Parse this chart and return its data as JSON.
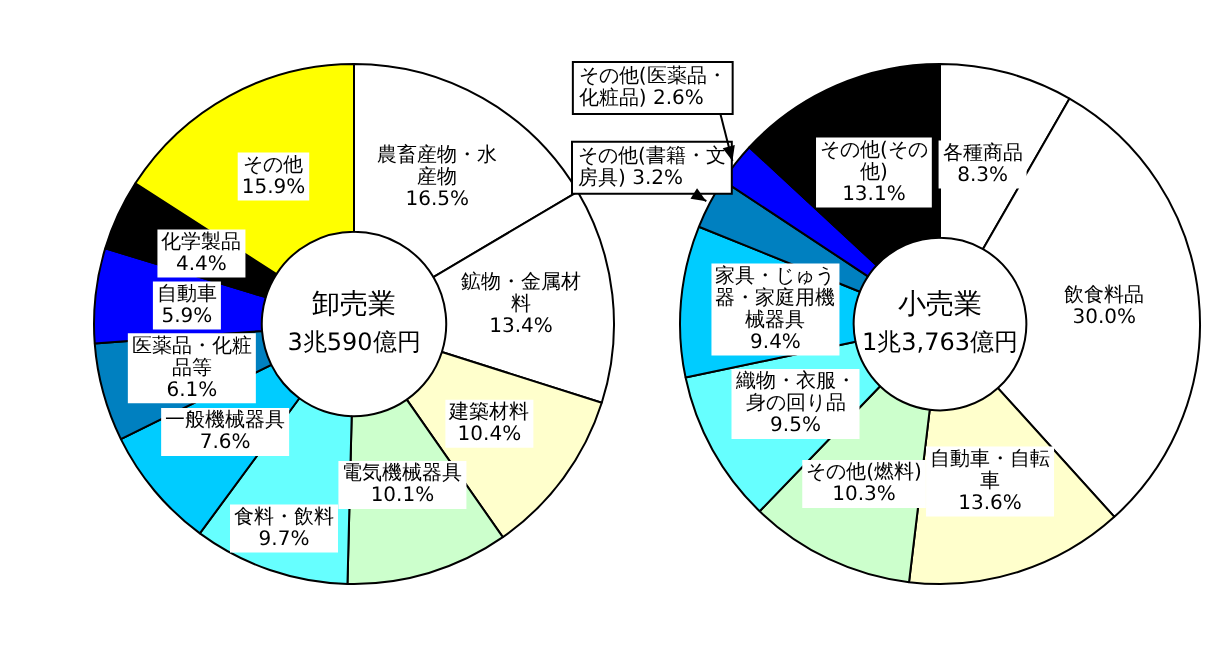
{
  "chart_data": [
    {
      "type": "donut",
      "title": "卸売業",
      "subtitle": "3兆590億円",
      "categories": [
        "農畜産物・水産物",
        "鉱物・金属材料",
        "建築材料",
        "電気機械器具",
        "食料・飲料",
        "一般機械器具",
        "医薬品・化粧品等",
        "自動車",
        "化学製品",
        "その他"
      ],
      "values": [
        16.5,
        13.4,
        10.4,
        10.1,
        9.7,
        7.6,
        6.1,
        5.9,
        4.4,
        15.9
      ],
      "value_labels": [
        "16.5%",
        "13.4%",
        "10.4%",
        "10.1%",
        "9.7%",
        "7.6%",
        "6.1%",
        "5.9%",
        "4.4%",
        "15.9%"
      ],
      "colors": [
        "#ffffff",
        "#ffffff",
        "#ffffcc",
        "#ccffcc",
        "#66ffff",
        "#00ccff",
        "#0080c0",
        "#0000ff",
        "#000000",
        "#ffff00"
      ],
      "legend": false
    },
    {
      "type": "donut",
      "title": "小売業",
      "subtitle": "1兆3,763億円",
      "categories": [
        "各種商品",
        "飲食料品",
        "自動車・自転車",
        "その他(燃料)",
        "織物・衣服・身の回り品",
        "家具・じゅう器・家庭用機械器具",
        "その他(書籍・文房具)",
        "その他(医薬品・化粧品)",
        "その他(その他)"
      ],
      "values": [
        8.3,
        30.0,
        13.6,
        10.3,
        9.5,
        9.4,
        3.2,
        2.6,
        13.1
      ],
      "value_labels": [
        "8.3%",
        "30.0%",
        "13.6%",
        "10.3%",
        "9.5%",
        "9.4%",
        "3.2%",
        "2.6%",
        "13.1%"
      ],
      "colors": [
        "#ffffff",
        "#ffffff",
        "#ffffcc",
        "#ccffcc",
        "#66ffff",
        "#00ccff",
        "#0080c0",
        "#0000ff",
        "#000000"
      ],
      "legend": false
    }
  ]
}
